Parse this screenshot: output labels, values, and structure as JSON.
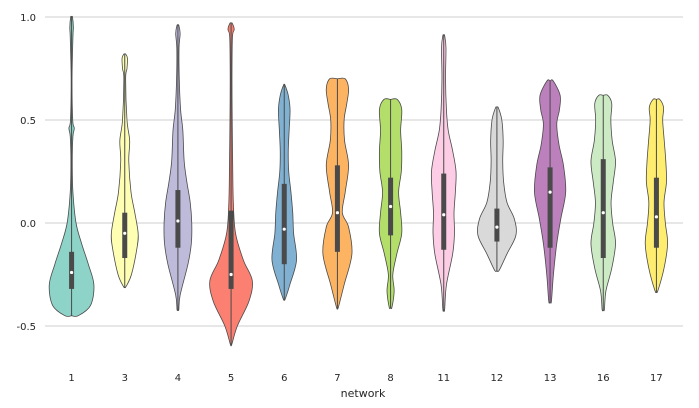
{
  "chart_data": {
    "type": "violin",
    "xlabel": "network",
    "ylabel": "",
    "ylim": [
      -0.7,
      1.0
    ],
    "yticks": [
      -0.5,
      0.0,
      0.5,
      1.0
    ],
    "ytick_labels": [
      "-0.5",
      "0.0",
      "0.5",
      "1.0"
    ],
    "grid": "horizontal",
    "categories": [
      "1",
      "3",
      "4",
      "5",
      "6",
      "7",
      "8",
      "11",
      "12",
      "13",
      "16",
      "17"
    ],
    "colors": [
      "#8dd3c7",
      "#ffffb3",
      "#bebada",
      "#fb8072",
      "#80b1d3",
      "#fdb462",
      "#b3de69",
      "#fccde5",
      "#d9d9d9",
      "#bc80bd",
      "#ccebc5",
      "#ffed6f"
    ],
    "series": [
      {
        "category": "1",
        "min": -0.45,
        "max": 1.0,
        "q1": -0.32,
        "median": -0.24,
        "q3": -0.14,
        "profile": [
          [
            -0.45,
            0.3
          ],
          [
            -0.4,
            0.85
          ],
          [
            -0.3,
            1.0
          ],
          [
            -0.2,
            0.75
          ],
          [
            -0.1,
            0.45
          ],
          [
            0.0,
            0.2
          ],
          [
            0.15,
            0.06
          ],
          [
            0.3,
            0.03
          ],
          [
            0.42,
            0.06
          ],
          [
            0.46,
            0.12
          ],
          [
            0.5,
            0.05
          ],
          [
            0.7,
            0.02
          ],
          [
            0.9,
            0.06
          ],
          [
            0.95,
            0.08
          ],
          [
            1.0,
            0.04
          ]
        ]
      },
      {
        "category": "3",
        "min": -0.31,
        "max": 0.82,
        "q1": -0.17,
        "median": -0.05,
        "q3": 0.05,
        "profile": [
          [
            -0.31,
            0.05
          ],
          [
            -0.25,
            0.3
          ],
          [
            -0.12,
            0.55
          ],
          [
            -0.05,
            0.6
          ],
          [
            0.05,
            0.45
          ],
          [
            0.15,
            0.28
          ],
          [
            0.3,
            0.18
          ],
          [
            0.4,
            0.22
          ],
          [
            0.5,
            0.1
          ],
          [
            0.7,
            0.04
          ],
          [
            0.75,
            0.1
          ],
          [
            0.8,
            0.12
          ],
          [
            0.82,
            0.04
          ]
        ]
      },
      {
        "category": "4",
        "min": -0.42,
        "max": 0.96,
        "q1": -0.12,
        "median": 0.01,
        "q3": 0.16,
        "profile": [
          [
            -0.42,
            0.04
          ],
          [
            -0.35,
            0.1
          ],
          [
            -0.2,
            0.45
          ],
          [
            -0.1,
            0.6
          ],
          [
            0.0,
            0.62
          ],
          [
            0.1,
            0.55
          ],
          [
            0.2,
            0.4
          ],
          [
            0.3,
            0.28
          ],
          [
            0.45,
            0.22
          ],
          [
            0.55,
            0.12
          ],
          [
            0.7,
            0.06
          ],
          [
            0.85,
            0.05
          ],
          [
            0.92,
            0.1
          ],
          [
            0.96,
            0.04
          ]
        ]
      },
      {
        "category": "5",
        "min": -0.59,
        "max": 0.97,
        "q1": -0.32,
        "median": -0.25,
        "q3": 0.06,
        "profile": [
          [
            -0.59,
            0.03
          ],
          [
            -0.5,
            0.28
          ],
          [
            -0.38,
            0.8
          ],
          [
            -0.28,
            0.95
          ],
          [
            -0.18,
            0.55
          ],
          [
            -0.05,
            0.2
          ],
          [
            0.1,
            0.1
          ],
          [
            0.3,
            0.07
          ],
          [
            0.5,
            0.05
          ],
          [
            0.7,
            0.04
          ],
          [
            0.9,
            0.06
          ],
          [
            0.94,
            0.14
          ],
          [
            0.97,
            0.05
          ]
        ]
      },
      {
        "category": "6",
        "min": -0.37,
        "max": 0.67,
        "q1": -0.2,
        "median": -0.03,
        "q3": 0.19,
        "profile": [
          [
            -0.37,
            0.04
          ],
          [
            -0.3,
            0.25
          ],
          [
            -0.18,
            0.55
          ],
          [
            -0.05,
            0.42
          ],
          [
            0.05,
            0.38
          ],
          [
            0.15,
            0.3
          ],
          [
            0.25,
            0.2
          ],
          [
            0.35,
            0.18
          ],
          [
            0.45,
            0.22
          ],
          [
            0.55,
            0.26
          ],
          [
            0.62,
            0.18
          ],
          [
            0.67,
            0.03
          ]
        ]
      },
      {
        "category": "7",
        "min": -0.41,
        "max": 0.7,
        "q1": -0.14,
        "median": 0.05,
        "q3": 0.28,
        "profile": [
          [
            -0.41,
            0.04
          ],
          [
            -0.3,
            0.3
          ],
          [
            -0.15,
            0.65
          ],
          [
            -0.02,
            0.5
          ],
          [
            0.05,
            0.22
          ],
          [
            0.15,
            0.35
          ],
          [
            0.28,
            0.5
          ],
          [
            0.4,
            0.32
          ],
          [
            0.5,
            0.3
          ],
          [
            0.58,
            0.42
          ],
          [
            0.65,
            0.5
          ],
          [
            0.7,
            0.35
          ]
        ]
      },
      {
        "category": "8",
        "min": -0.41,
        "max": 0.6,
        "q1": -0.06,
        "median": 0.08,
        "q3": 0.22,
        "profile": [
          [
            -0.41,
            0.06
          ],
          [
            -0.33,
            0.16
          ],
          [
            -0.25,
            0.1
          ],
          [
            -0.15,
            0.28
          ],
          [
            -0.05,
            0.5
          ],
          [
            0.05,
            0.45
          ],
          [
            0.15,
            0.36
          ],
          [
            0.25,
            0.48
          ],
          [
            0.35,
            0.5
          ],
          [
            0.45,
            0.45
          ],
          [
            0.55,
            0.5
          ],
          [
            0.6,
            0.3
          ]
        ]
      },
      {
        "category": "11",
        "min": -0.42,
        "max": 0.91,
        "q1": -0.13,
        "median": 0.04,
        "q3": 0.24,
        "profile": [
          [
            -0.42,
            0.04
          ],
          [
            -0.3,
            0.12
          ],
          [
            -0.15,
            0.4
          ],
          [
            -0.05,
            0.48
          ],
          [
            0.05,
            0.46
          ],
          [
            0.15,
            0.52
          ],
          [
            0.25,
            0.55
          ],
          [
            0.35,
            0.4
          ],
          [
            0.45,
            0.2
          ],
          [
            0.55,
            0.12
          ],
          [
            0.7,
            0.08
          ],
          [
            0.85,
            0.1
          ],
          [
            0.91,
            0.04
          ]
        ]
      },
      {
        "category": "12",
        "min": -0.23,
        "max": 0.56,
        "q1": -0.09,
        "median": -0.02,
        "q3": 0.07,
        "profile": [
          [
            -0.23,
            0.1
          ],
          [
            -0.15,
            0.45
          ],
          [
            -0.06,
            0.85
          ],
          [
            0.02,
            0.78
          ],
          [
            0.1,
            0.45
          ],
          [
            0.2,
            0.3
          ],
          [
            0.3,
            0.26
          ],
          [
            0.4,
            0.28
          ],
          [
            0.5,
            0.22
          ],
          [
            0.56,
            0.06
          ]
        ]
      },
      {
        "category": "13",
        "min": -0.38,
        "max": 0.69,
        "q1": -0.12,
        "median": 0.15,
        "q3": 0.27,
        "profile": [
          [
            -0.38,
            0.06
          ],
          [
            -0.25,
            0.15
          ],
          [
            -0.1,
            0.3
          ],
          [
            0.02,
            0.48
          ],
          [
            0.15,
            0.7
          ],
          [
            0.28,
            0.6
          ],
          [
            0.38,
            0.4
          ],
          [
            0.48,
            0.3
          ],
          [
            0.55,
            0.42
          ],
          [
            0.62,
            0.45
          ],
          [
            0.69,
            0.14
          ]
        ]
      },
      {
        "category": "16",
        "min": -0.42,
        "max": 0.62,
        "q1": -0.17,
        "median": 0.05,
        "q3": 0.31,
        "profile": [
          [
            -0.42,
            0.05
          ],
          [
            -0.33,
            0.12
          ],
          [
            -0.22,
            0.38
          ],
          [
            -0.1,
            0.55
          ],
          [
            0.0,
            0.42
          ],
          [
            0.1,
            0.35
          ],
          [
            0.2,
            0.45
          ],
          [
            0.3,
            0.55
          ],
          [
            0.4,
            0.4
          ],
          [
            0.5,
            0.34
          ],
          [
            0.58,
            0.38
          ],
          [
            0.62,
            0.2
          ]
        ]
      },
      {
        "category": "17",
        "min": -0.33,
        "max": 0.6,
        "q1": -0.12,
        "median": 0.03,
        "q3": 0.22,
        "profile": [
          [
            -0.33,
            0.06
          ],
          [
            -0.22,
            0.34
          ],
          [
            -0.1,
            0.5
          ],
          [
            0.0,
            0.4
          ],
          [
            0.1,
            0.34
          ],
          [
            0.2,
            0.45
          ],
          [
            0.3,
            0.42
          ],
          [
            0.4,
            0.35
          ],
          [
            0.5,
            0.28
          ],
          [
            0.56,
            0.32
          ],
          [
            0.6,
            0.15
          ]
        ]
      }
    ]
  }
}
